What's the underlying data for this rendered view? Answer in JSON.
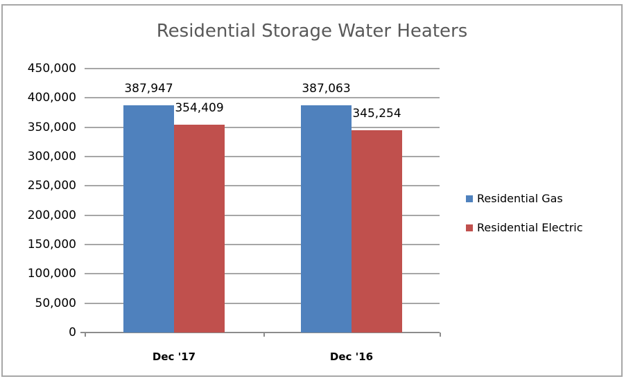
{
  "chart_data": {
    "type": "bar",
    "title": "Residential Storage Water Heaters",
    "categories": [
      "Dec '17",
      "Dec '16"
    ],
    "series": [
      {
        "name": "Residential Gas",
        "color": "#4f81bd",
        "values": [
          387947,
          387063
        ],
        "labels": [
          "387,947",
          "387,063"
        ]
      },
      {
        "name": "Residential Electric",
        "color": "#c0504d",
        "values": [
          354409,
          345254
        ],
        "labels": [
          "354,409",
          "345,254"
        ]
      }
    ],
    "xlabel": "",
    "ylabel": "",
    "ylim": [
      0,
      450000
    ],
    "yticks": [
      "0",
      "50,000",
      "100,000",
      "150,000",
      "200,000",
      "250,000",
      "300,000",
      "350,000",
      "400,000",
      "450,000"
    ],
    "grid": true,
    "legend_position": "right"
  }
}
